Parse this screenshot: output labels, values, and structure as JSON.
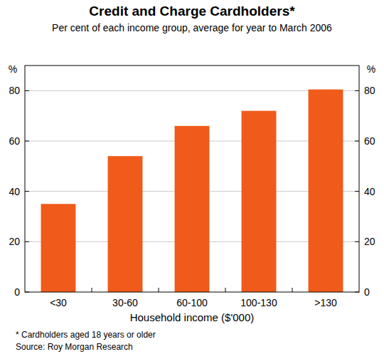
{
  "chart_data": {
    "type": "bar",
    "title": "Credit and Charge Cardholders*",
    "subtitle": "Per cent of each income group, average for year to March 2006",
    "y_label": "%",
    "x_label": "Household income ($'000)",
    "footnote": "* Cardholders aged 18 years or older",
    "source": "Source: Roy Morgan Research",
    "categories": [
      "<30",
      "30-60",
      "60-100",
      "100-130",
      ">130"
    ],
    "values": [
      35,
      54,
      66,
      72,
      80.5
    ],
    "color": "#f05a1a",
    "ylim": [
      0,
      90
    ],
    "yticks": [
      0,
      20,
      40,
      60,
      80
    ],
    "grid": true
  }
}
